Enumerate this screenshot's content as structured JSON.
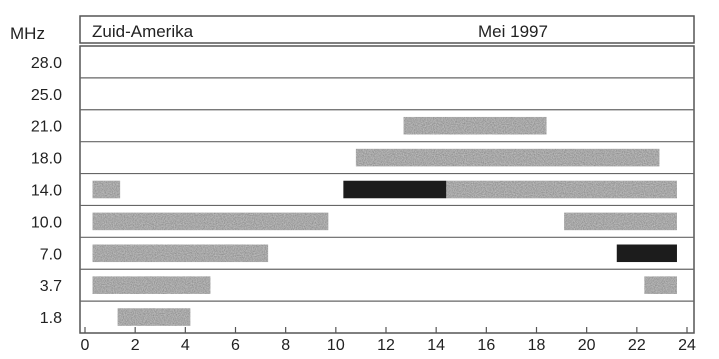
{
  "chart_data": {
    "type": "bar",
    "orientation": "horizontal-ranges",
    "title": "Zuid-Amerika",
    "subtitle": "Mei 1997",
    "ylabel": "MHz",
    "categories": [
      "28.0",
      "25.0",
      "21.0",
      "18.0",
      "14.0",
      "10.0",
      "7.0",
      "3.7",
      "1.8"
    ],
    "xlim": [
      0,
      24
    ],
    "x_ticks": [
      "0",
      "2",
      "4",
      "6",
      "8",
      "10",
      "12",
      "14",
      "16",
      "18",
      "20",
      "22",
      "24"
    ],
    "grid": false,
    "series": [
      {
        "intensity": "medium",
        "ranges": [
          {
            "band": "21.0",
            "start": 12.7,
            "end": 18.4
          },
          {
            "band": "18.0",
            "start": 10.8,
            "end": 22.9
          },
          {
            "band": "14.0",
            "start": 0.3,
            "end": 1.4
          },
          {
            "band": "14.0",
            "start": 14.4,
            "end": 23.6
          },
          {
            "band": "10.0",
            "start": 0.3,
            "end": 9.7
          },
          {
            "band": "10.0",
            "start": 19.1,
            "end": 23.6
          },
          {
            "band": "7.0",
            "start": 0.3,
            "end": 7.3
          },
          {
            "band": "3.7",
            "start": 0.3,
            "end": 5.0
          },
          {
            "band": "3.7",
            "start": 22.3,
            "end": 23.6
          },
          {
            "band": "1.8",
            "start": 1.3,
            "end": 4.2
          }
        ]
      },
      {
        "intensity": "high",
        "ranges": [
          {
            "band": "14.0",
            "start": 10.3,
            "end": 14.4
          },
          {
            "band": "7.0",
            "start": 21.2,
            "end": 23.6
          }
        ]
      }
    ],
    "colors": {
      "medium": "#8c8c8c",
      "high": "#1c1c1c",
      "frame": "#555555"
    }
  }
}
